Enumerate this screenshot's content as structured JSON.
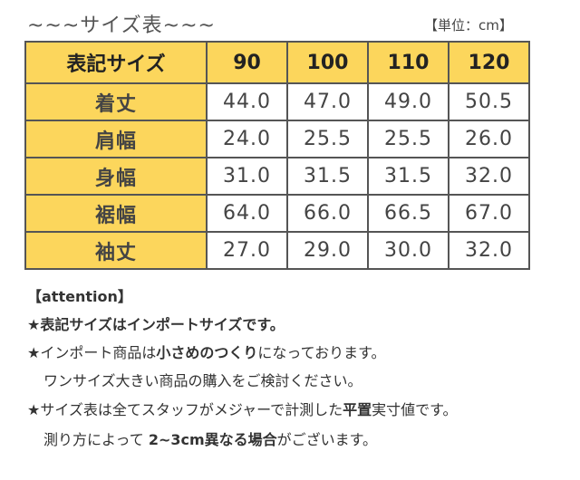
{
  "header": {
    "title": "~~~サイズ表~~~",
    "unit": "【単位：cm】"
  },
  "table": {
    "columns": [
      "表記サイズ",
      "90",
      "100",
      "110",
      "120"
    ],
    "rows": [
      [
        "着丈",
        "44.0",
        "47.0",
        "49.0",
        "50.5"
      ],
      [
        "肩幅",
        "24.0",
        "25.5",
        "25.5",
        "26.0"
      ],
      [
        "身幅",
        "31.0",
        "31.5",
        "31.5",
        "32.0"
      ],
      [
        "裾幅",
        "64.0",
        "66.0",
        "66.5",
        "67.0"
      ],
      [
        "袖丈",
        "27.0",
        "29.0",
        "30.0",
        "32.0"
      ]
    ]
  },
  "notes": {
    "heading": "【attention】",
    "lines": [
      [
        "★表記サイズはインポートサイズです。"
      ],
      [
        "★インポート商品は",
        "小さめのつくり",
        "になっております。"
      ],
      [
        "ワンサイズ大きい商品の購入をご検討ください。"
      ],
      [
        "★サイズ表は全てスタッフがメジャーで計測した",
        "平置",
        "実寸値です。"
      ],
      [
        "測り方によって ",
        "2~3cm異なる場合",
        "がございます。"
      ]
    ]
  }
}
